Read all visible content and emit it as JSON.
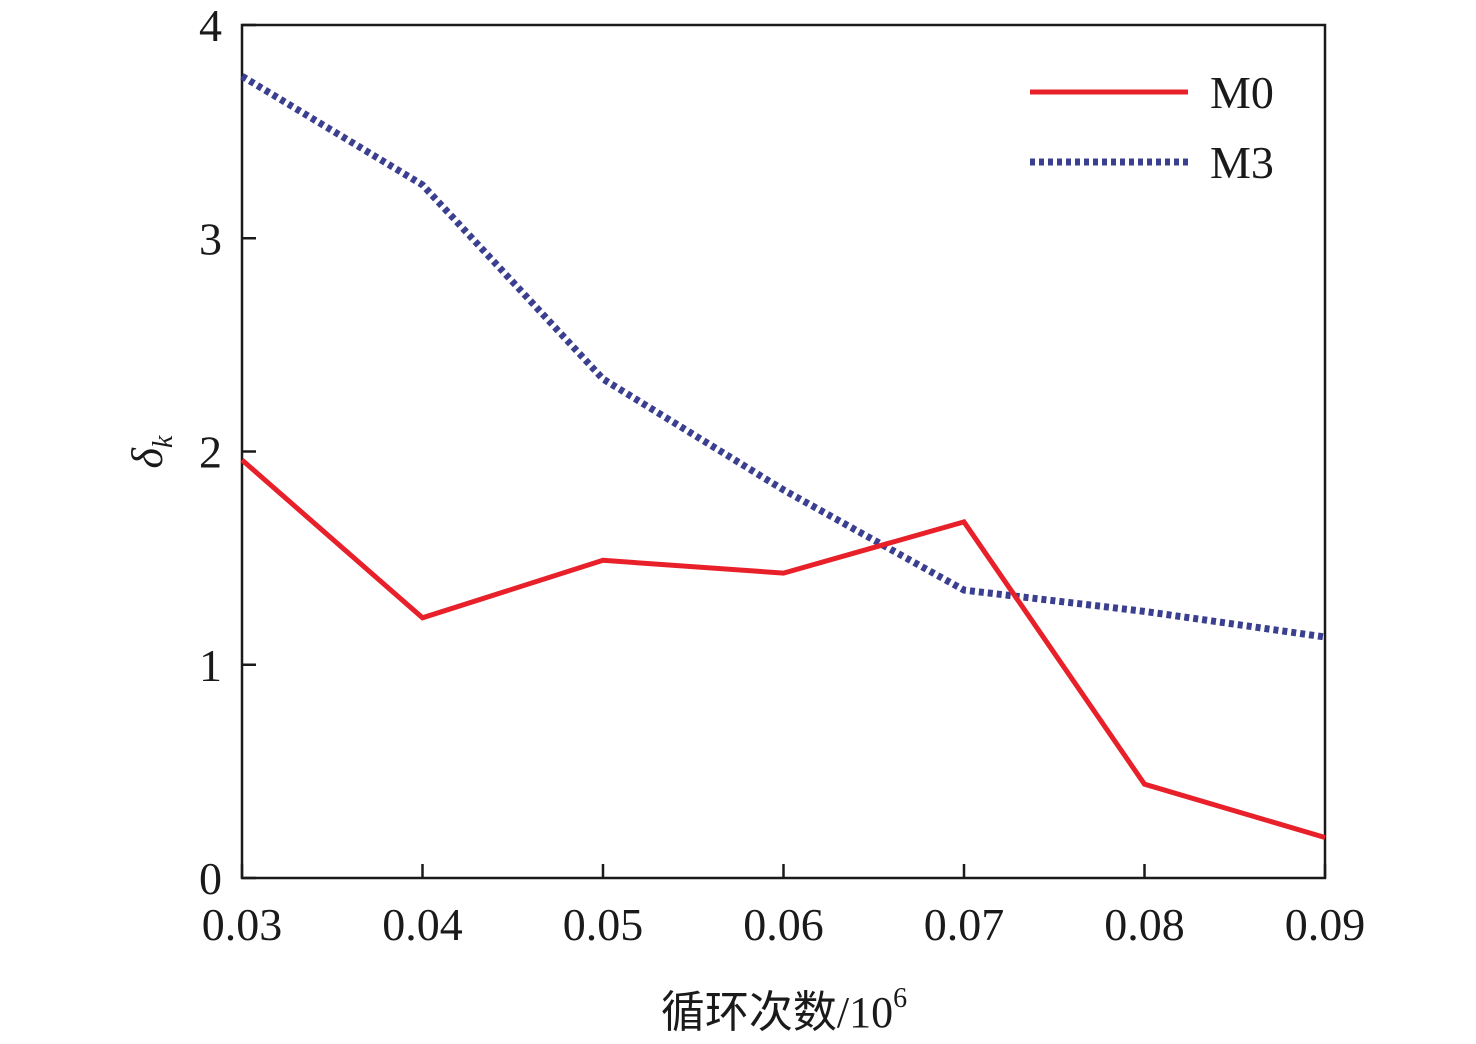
{
  "chart_data": {
    "type": "line",
    "x": [
      0.03,
      0.04,
      0.05,
      0.06,
      0.07,
      0.08,
      0.09
    ],
    "x_tick_labels": [
      "0.03",
      "0.04",
      "0.05",
      "0.06",
      "0.07",
      "0.08",
      "0.09"
    ],
    "y_ticks": [
      0,
      1,
      2,
      3,
      4
    ],
    "y_tick_labels": [
      "0",
      "1",
      "2",
      "3",
      "4"
    ],
    "xlim": [
      0.03,
      0.09
    ],
    "ylim": [
      0,
      4
    ],
    "xlabel_main": "循环次数/10",
    "xlabel_sup": "6",
    "ylabel_main": "δ",
    "ylabel_sub": "k",
    "grid": false,
    "legend_position": "top-right",
    "series": [
      {
        "name": "M0",
        "color": "#e8202a",
        "style": "solid",
        "values": [
          1.96,
          1.22,
          1.49,
          1.43,
          1.67,
          0.44,
          0.19
        ]
      },
      {
        "name": "M3",
        "color": "#3b3f8f",
        "style": "dotted",
        "values": [
          3.76,
          3.25,
          2.34,
          1.82,
          1.35,
          1.25,
          1.13
        ]
      }
    ]
  }
}
